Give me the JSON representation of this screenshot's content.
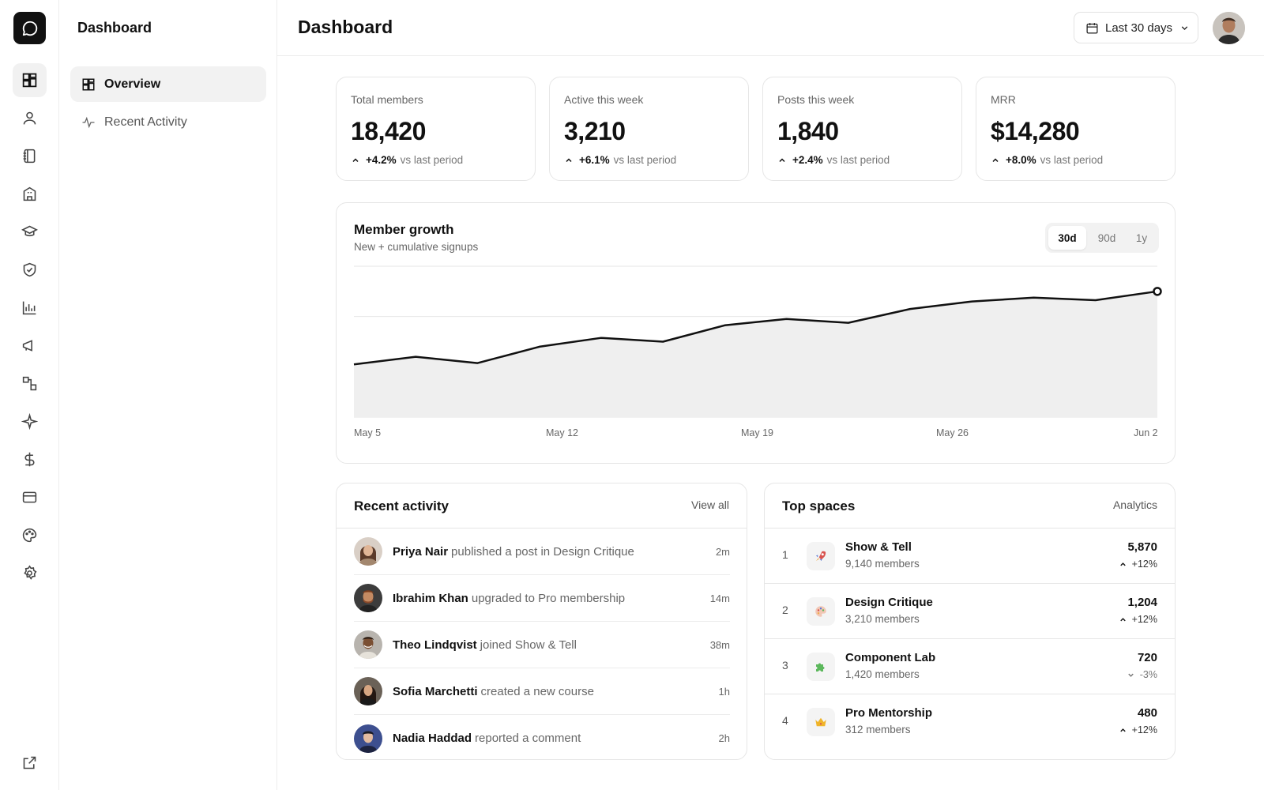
{
  "sidebar": {
    "title": "Dashboard",
    "items": [
      {
        "label": "Overview",
        "icon": "layout-grid-icon",
        "active": true
      },
      {
        "label": "Recent Activity",
        "icon": "activity-icon",
        "active": false
      }
    ]
  },
  "rail": {
    "icons": [
      "chat-bubble-icon",
      "layout-grid-icon",
      "user-icon",
      "notebook-icon",
      "building-icon",
      "graduation-cap-icon",
      "shield-check-icon",
      "bar-chart-icon",
      "megaphone-icon",
      "workflow-icon",
      "sparkle-icon",
      "dollar-icon",
      "credit-card-icon",
      "palette-icon",
      "gear-icon",
      "external-link-icon"
    ]
  },
  "header": {
    "title": "Dashboard",
    "range_label": "Last 30 days"
  },
  "stats": [
    {
      "label": "Total members",
      "value": "18,420",
      "delta": "+4.2%",
      "suffix": "vs last period"
    },
    {
      "label": "Active this week",
      "value": "3,210",
      "delta": "+6.1%",
      "suffix": "vs last period"
    },
    {
      "label": "Posts this week",
      "value": "1,840",
      "delta": "+2.4%",
      "suffix": "vs last period"
    },
    {
      "label": "MRR",
      "value": "$14,280",
      "delta": "+8.0%",
      "suffix": "vs last period"
    }
  ],
  "growth": {
    "title": "Member growth",
    "subtitle": "New + cumulative signups",
    "ranges": [
      {
        "label": "30d",
        "active": true
      },
      {
        "label": "90d",
        "active": false
      },
      {
        "label": "1y",
        "active": false
      }
    ]
  },
  "chart_data": {
    "type": "area",
    "title": "Member growth",
    "subtitle": "New + cumulative signups",
    "x_tick_labels": [
      "May 5",
      "May 12",
      "May 19",
      "May 26",
      "Jun 2"
    ],
    "x": [
      "May 5",
      "May 7",
      "May 9",
      "May 12",
      "May 14",
      "May 15",
      "May 17",
      "May 19",
      "May 21",
      "May 23",
      "May 25",
      "May 27",
      "May 29",
      "Jun 2"
    ],
    "values": [
      42,
      48,
      43,
      56,
      63,
      60,
      73,
      78,
      75,
      86,
      92,
      95,
      93,
      100
    ],
    "ylim": [
      0,
      120
    ],
    "grid": true,
    "legend": "none"
  },
  "activity": {
    "title": "Recent activity",
    "link": "View all",
    "rows": [
      {
        "name": "Priya Nair",
        "action": "published a post in Design Critique",
        "time": "2m",
        "avatar": "avatar-priya"
      },
      {
        "name": "Ibrahim Khan",
        "action": "upgraded to Pro membership",
        "time": "14m",
        "avatar": "avatar-ibrahim"
      },
      {
        "name": "Theo Lindqvist",
        "action": "joined Show & Tell",
        "time": "38m",
        "avatar": "avatar-theo"
      },
      {
        "name": "Sofia Marchetti",
        "action": "created a new course",
        "time": "1h",
        "avatar": "avatar-sofia"
      },
      {
        "name": "Nadia Haddad",
        "action": "reported a comment",
        "time": "2h",
        "avatar": "avatar-nadia"
      }
    ]
  },
  "spaces": {
    "title": "Top spaces",
    "link": "Analytics",
    "rows": [
      {
        "rank": "1",
        "name": "Show & Tell",
        "members": "9,140 members",
        "value": "5,870",
        "delta": "+12%",
        "direction": "up",
        "icon": "rocket-icon"
      },
      {
        "rank": "2",
        "name": "Design Critique",
        "members": "3,210 members",
        "value": "1,204",
        "delta": "+12%",
        "direction": "up",
        "icon": "palette-icon"
      },
      {
        "rank": "3",
        "name": "Component Lab",
        "members": "1,420 members",
        "value": "720",
        "delta": "-3%",
        "direction": "down",
        "icon": "puzzle-icon"
      },
      {
        "rank": "4",
        "name": "Pro Mentorship",
        "members": "312 members",
        "value": "480",
        "delta": "+12%",
        "direction": "up",
        "icon": "crown-icon"
      }
    ]
  },
  "colors": {
    "line": "#111111",
    "area": "#efefef",
    "grid": "#e6e6e6",
    "border": "#e6e6e6"
  }
}
